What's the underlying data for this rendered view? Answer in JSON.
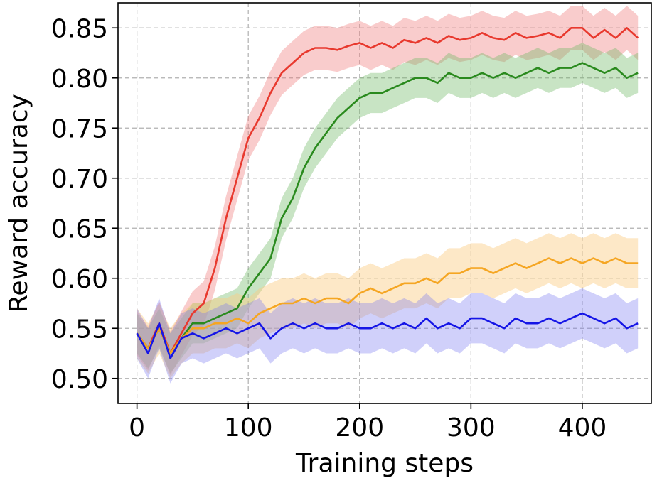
{
  "chart_data": {
    "type": "line",
    "title": "",
    "xlabel": "Training steps",
    "ylabel": "Reward accuracy",
    "xlim": [
      -17,
      462
    ],
    "ylim": [
      0.475,
      0.875
    ],
    "xticks": [
      0,
      100,
      200,
      300,
      400
    ],
    "yticks": [
      0.5,
      0.55,
      0.6,
      0.65,
      0.7,
      0.75,
      0.8,
      0.85
    ],
    "ytick_labels": [
      "0.50",
      "0.55",
      "0.60",
      "0.65",
      "0.70",
      "0.75",
      "0.80",
      "0.85"
    ],
    "grid": true,
    "legend": "none",
    "series": [
      {
        "color": "#e8392e",
        "band_color": "rgba(240,120,120,0.38)",
        "x": [
          0,
          10,
          20,
          30,
          40,
          50,
          60,
          70,
          80,
          90,
          100,
          110,
          120,
          130,
          140,
          150,
          160,
          170,
          180,
          190,
          200,
          210,
          220,
          230,
          240,
          250,
          260,
          270,
          280,
          290,
          300,
          310,
          320,
          330,
          340,
          350,
          360,
          370,
          380,
          390,
          400,
          410,
          420,
          430,
          440,
          450
        ],
        "y": [
          0.545,
          0.53,
          0.555,
          0.525,
          0.545,
          0.565,
          0.575,
          0.61,
          0.66,
          0.7,
          0.74,
          0.76,
          0.785,
          0.805,
          0.815,
          0.825,
          0.83,
          0.83,
          0.828,
          0.832,
          0.835,
          0.83,
          0.835,
          0.83,
          0.838,
          0.835,
          0.84,
          0.835,
          0.842,
          0.838,
          0.84,
          0.845,
          0.84,
          0.838,
          0.845,
          0.84,
          0.842,
          0.845,
          0.84,
          0.85,
          0.85,
          0.84,
          0.848,
          0.84,
          0.85,
          0.84
        ],
        "band": 0.022
      },
      {
        "color": "#2a8a1e",
        "band_color": "rgba(110,185,100,0.38)",
        "x": [
          0,
          10,
          20,
          30,
          40,
          50,
          60,
          70,
          80,
          90,
          100,
          110,
          120,
          130,
          140,
          150,
          160,
          170,
          180,
          190,
          200,
          210,
          220,
          230,
          240,
          250,
          260,
          270,
          280,
          290,
          300,
          310,
          320,
          330,
          340,
          350,
          360,
          370,
          380,
          390,
          400,
          410,
          420,
          430,
          440,
          450
        ],
        "y": [
          0.545,
          0.53,
          0.55,
          0.525,
          0.54,
          0.555,
          0.555,
          0.56,
          0.565,
          0.57,
          0.59,
          0.605,
          0.62,
          0.66,
          0.68,
          0.71,
          0.73,
          0.745,
          0.76,
          0.77,
          0.78,
          0.785,
          0.785,
          0.79,
          0.795,
          0.8,
          0.8,
          0.795,
          0.805,
          0.8,
          0.8,
          0.805,
          0.8,
          0.805,
          0.8,
          0.805,
          0.81,
          0.805,
          0.81,
          0.81,
          0.815,
          0.81,
          0.805,
          0.81,
          0.8,
          0.805
        ],
        "band": 0.02
      },
      {
        "color": "#f5a623",
        "band_color": "rgba(250,205,130,0.45)",
        "x": [
          0,
          10,
          20,
          30,
          40,
          50,
          60,
          70,
          80,
          90,
          100,
          110,
          120,
          130,
          140,
          150,
          160,
          170,
          180,
          190,
          200,
          210,
          220,
          230,
          240,
          250,
          260,
          270,
          280,
          290,
          300,
          310,
          320,
          330,
          340,
          350,
          360,
          370,
          380,
          390,
          400,
          410,
          420,
          430,
          440,
          450
        ],
        "y": [
          0.545,
          0.53,
          0.55,
          0.525,
          0.54,
          0.55,
          0.55,
          0.555,
          0.555,
          0.56,
          0.555,
          0.565,
          0.57,
          0.575,
          0.575,
          0.58,
          0.575,
          0.58,
          0.58,
          0.575,
          0.585,
          0.59,
          0.585,
          0.59,
          0.595,
          0.595,
          0.6,
          0.595,
          0.605,
          0.605,
          0.61,
          0.61,
          0.605,
          0.61,
          0.615,
          0.61,
          0.615,
          0.62,
          0.615,
          0.62,
          0.615,
          0.62,
          0.615,
          0.62,
          0.615,
          0.615
        ],
        "band": 0.025
      },
      {
        "color": "#1515e6",
        "band_color": "rgba(120,120,240,0.35)",
        "x": [
          0,
          10,
          20,
          30,
          40,
          50,
          60,
          70,
          80,
          90,
          100,
          110,
          120,
          130,
          140,
          150,
          160,
          170,
          180,
          190,
          200,
          210,
          220,
          230,
          240,
          250,
          260,
          270,
          280,
          290,
          300,
          310,
          320,
          330,
          340,
          350,
          360,
          370,
          380,
          390,
          400,
          410,
          420,
          430,
          440,
          450
        ],
        "y": [
          0.545,
          0.525,
          0.555,
          0.52,
          0.54,
          0.545,
          0.54,
          0.545,
          0.55,
          0.545,
          0.55,
          0.555,
          0.54,
          0.55,
          0.555,
          0.55,
          0.555,
          0.55,
          0.55,
          0.555,
          0.55,
          0.55,
          0.555,
          0.55,
          0.555,
          0.55,
          0.56,
          0.55,
          0.555,
          0.55,
          0.56,
          0.56,
          0.555,
          0.55,
          0.56,
          0.555,
          0.555,
          0.56,
          0.555,
          0.56,
          0.565,
          0.56,
          0.555,
          0.56,
          0.55,
          0.555
        ],
        "band": 0.025
      }
    ]
  }
}
